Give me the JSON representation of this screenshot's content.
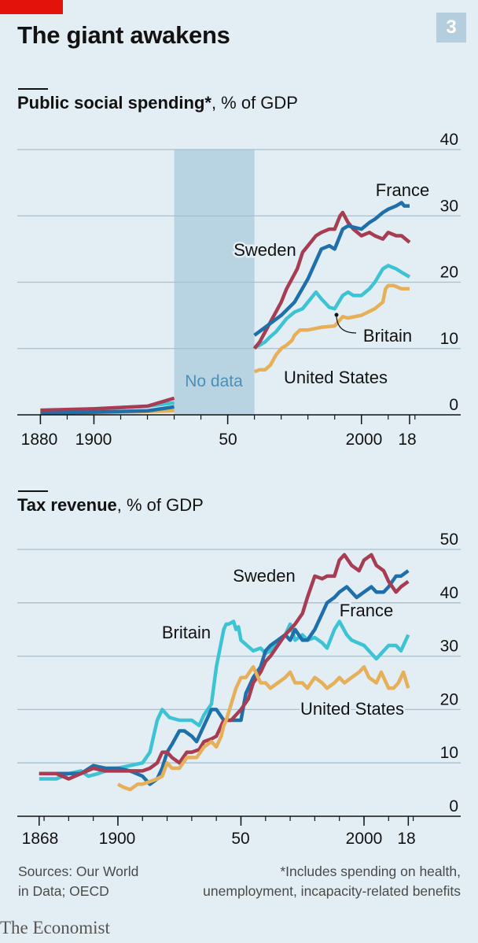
{
  "header": {
    "title": "The giant awakens",
    "badge": "3",
    "accent_color": "#e3120b"
  },
  "chart_data": [
    {
      "type": "line",
      "title": "Public social spending*",
      "unit_label": ", % of GDP",
      "ylim": [
        0,
        40
      ],
      "y_ticks": [
        "0",
        "10",
        "20",
        "30",
        "40"
      ],
      "x_ticks": [
        "1880",
        "1900",
        "50",
        "2000",
        "18"
      ],
      "xlim": [
        1874,
        2023
      ],
      "gap": {
        "from": 1930,
        "to": 1960,
        "label": "No data"
      },
      "series": [
        {
          "name": "United States",
          "color": "#e6b05a",
          "x": [
            1880,
            1900,
            1920,
            1930,
            1960,
            1962,
            1964,
            1966,
            1968,
            1970,
            1972,
            1974,
            1975,
            1977,
            1980,
            1985,
            1990,
            1993,
            1995,
            2000,
            2005,
            2008,
            2009,
            2010,
            2012,
            2015,
            2018
          ],
          "y": [
            0.2,
            0.3,
            0.5,
            0.6,
            6.5,
            6.8,
            6.8,
            7.5,
            9.0,
            10.0,
            10.5,
            11.2,
            12.0,
            12.8,
            12.8,
            13.2,
            13.4,
            14.8,
            14.6,
            15.0,
            16.0,
            17.0,
            19.0,
            19.5,
            19.5,
            19.0,
            19.0
          ]
        },
        {
          "name": "Britain",
          "color": "#3dc3d4",
          "x": [
            1880,
            1900,
            1920,
            1930,
            1960,
            1962,
            1964,
            1966,
            1968,
            1970,
            1972,
            1975,
            1978,
            1980,
            1983,
            1985,
            1988,
            1990,
            1993,
            1995,
            1997,
            2000,
            2003,
            2005,
            2008,
            2010,
            2013,
            2015,
            2018
          ],
          "y": [
            0.5,
            0.9,
            1.3,
            1.8,
            10.2,
            10.5,
            11.0,
            11.8,
            12.5,
            13.5,
            14.5,
            15.5,
            16.0,
            17.0,
            18.5,
            17.5,
            16.2,
            16.0,
            18.0,
            18.5,
            18.0,
            18.0,
            19.0,
            20.0,
            22.0,
            22.5,
            22.0,
            21.5,
            20.8
          ]
        },
        {
          "name": "Sweden",
          "color": "#a73d52",
          "x": [
            1880,
            1900,
            1920,
            1930,
            1960,
            1962,
            1964,
            1966,
            1968,
            1970,
            1972,
            1974,
            1976,
            1978,
            1980,
            1983,
            1985,
            1988,
            1990,
            1992,
            1993,
            1995,
            1997,
            2000,
            2003,
            2005,
            2008,
            2010,
            2013,
            2015,
            2018
          ],
          "y": [
            0.7,
            0.9,
            1.3,
            2.5,
            10.0,
            11.0,
            12.5,
            14.0,
            15.5,
            17.0,
            19.0,
            20.5,
            22.0,
            24.5,
            25.5,
            27.0,
            27.5,
            28.0,
            28.0,
            30.0,
            30.5,
            29.0,
            28.0,
            27.0,
            27.5,
            27.0,
            26.5,
            27.5,
            27.0,
            27.0,
            26.0
          ]
        },
        {
          "name": "France",
          "color": "#1f6faa",
          "x": [
            1880,
            1900,
            1920,
            1930,
            1960,
            1965,
            1970,
            1975,
            1980,
            1985,
            1988,
            1990,
            1993,
            1995,
            2000,
            2003,
            2005,
            2008,
            2010,
            2013,
            2015,
            2016,
            2018
          ],
          "y": [
            0.2,
            0.4,
            0.6,
            1.2,
            12.0,
            13.5,
            15.0,
            17.0,
            20.5,
            25.0,
            25.5,
            25.0,
            28.0,
            28.5,
            28.0,
            29.0,
            29.5,
            30.5,
            31.0,
            31.5,
            32.0,
            31.5,
            31.5
          ]
        }
      ],
      "annotations": [
        "France",
        "Sweden",
        "Britain",
        "United States"
      ]
    },
    {
      "type": "line",
      "title": "Tax revenue",
      "unit_label": ", % of GDP",
      "ylim": [
        0,
        50
      ],
      "y_ticks": [
        "0",
        "10",
        "20",
        "30",
        "40",
        "50"
      ],
      "x_ticks": [
        "1868",
        "1900",
        "50",
        "2000",
        "18"
      ],
      "xlim": [
        1862,
        2023
      ],
      "series": [
        {
          "name": "Britain",
          "color": "#3dc3d4",
          "x": [
            1868,
            1875,
            1880,
            1885,
            1888,
            1892,
            1895,
            1900,
            1905,
            1910,
            1913,
            1916,
            1918,
            1921,
            1925,
            1930,
            1933,
            1935,
            1938,
            1940,
            1943,
            1944,
            1945,
            1947,
            1948,
            1949,
            1950,
            1955,
            1958,
            1960,
            1962,
            1965,
            1968,
            1970,
            1972,
            1975,
            1977,
            1980,
            1983,
            1985,
            1988,
            1990,
            1993,
            1995,
            2000,
            2005,
            2008,
            2010,
            2013,
            2015,
            2018
          ],
          "y": [
            7,
            7,
            8,
            8.5,
            7.5,
            8,
            8.5,
            9,
            9.5,
            10,
            12,
            18,
            20,
            18.5,
            18,
            18,
            17,
            19,
            21,
            28,
            35,
            36,
            36,
            36.5,
            35,
            35.5,
            33,
            31,
            31.5,
            30.5,
            31,
            33,
            34,
            36,
            33,
            34,
            33,
            33.5,
            32.5,
            31.5,
            35,
            36.5,
            34,
            33,
            32,
            29.5,
            31,
            32,
            32,
            31,
            34
          ]
        },
        {
          "name": "France",
          "color": "#1f6faa",
          "x": [
            1868,
            1875,
            1880,
            1885,
            1890,
            1895,
            1900,
            1905,
            1910,
            1913,
            1916,
            1918,
            1920,
            1922,
            1925,
            1927,
            1930,
            1932,
            1935,
            1938,
            1940,
            1943,
            1946,
            1950,
            1952,
            1955,
            1958,
            1960,
            1962,
            1965,
            1968,
            1970,
            1972,
            1975,
            1977,
            1980,
            1983,
            1985,
            1988,
            1990,
            1993,
            1995,
            1997,
            2000,
            2003,
            2005,
            2008,
            2010,
            2013,
            2015,
            2018
          ],
          "y": [
            8,
            8,
            8,
            8,
            9.5,
            9,
            9,
            8.5,
            7.5,
            6,
            7,
            9,
            12,
            13.5,
            16,
            16,
            15,
            14,
            17,
            20,
            20,
            18,
            18,
            18,
            23,
            26,
            28,
            31,
            32,
            33,
            34,
            33,
            35,
            33,
            33,
            35,
            38,
            40,
            41,
            42,
            43,
            42,
            41,
            42,
            43,
            42,
            42,
            43,
            45,
            45,
            46
          ]
        },
        {
          "name": "Sweden",
          "color": "#a73d52",
          "x": [
            1868,
            1875,
            1880,
            1885,
            1890,
            1895,
            1900,
            1905,
            1910,
            1913,
            1916,
            1918,
            1920,
            1922,
            1925,
            1928,
            1930,
            1933,
            1935,
            1938,
            1940,
            1943,
            1946,
            1950,
            1953,
            1955,
            1958,
            1960,
            1962,
            1965,
            1968,
            1970,
            1972,
            1975,
            1977,
            1980,
            1983,
            1985,
            1988,
            1990,
            1992,
            1995,
            1998,
            2000,
            2003,
            2005,
            2008,
            2010,
            2013,
            2015,
            2018
          ],
          "y": [
            8,
            8,
            7,
            8,
            9,
            8.5,
            8.5,
            8.5,
            8.5,
            9,
            10,
            12,
            12,
            11,
            10,
            12,
            12,
            12.5,
            14,
            14.5,
            15,
            18,
            18,
            20,
            22,
            25,
            27,
            29,
            30,
            32,
            34,
            35,
            36,
            38,
            41,
            45,
            44.5,
            45,
            45,
            48,
            49,
            47,
            46,
            48,
            49,
            47,
            46,
            44,
            42,
            43,
            44
          ]
        },
        {
          "name": "United States",
          "color": "#e6b05a",
          "x": [
            1900,
            1902,
            1905,
            1908,
            1910,
            1913,
            1916,
            1918,
            1920,
            1922,
            1925,
            1928,
            1930,
            1932,
            1935,
            1938,
            1940,
            1942,
            1943,
            1944,
            1946,
            1948,
            1950,
            1952,
            1955,
            1958,
            1960,
            1962,
            1965,
            1968,
            1970,
            1972,
            1975,
            1977,
            1980,
            1983,
            1985,
            1988,
            1990,
            1992,
            1995,
            1998,
            2000,
            2002,
            2005,
            2007,
            2008,
            2010,
            2012,
            2014,
            2016,
            2018
          ],
          "y": [
            6,
            5.5,
            5,
            6,
            6,
            6.5,
            7,
            7.5,
            10,
            9,
            9,
            11,
            11,
            11,
            13,
            14,
            13,
            15,
            17,
            18,
            21,
            24,
            26,
            26,
            28,
            25,
            25,
            24,
            25,
            26,
            27,
            25,
            25,
            24,
            26,
            25,
            24,
            25,
            26,
            25,
            26,
            27,
            28,
            26,
            25,
            27,
            26,
            24,
            24,
            25,
            27,
            24
          ]
        }
      ],
      "annotations": [
        "Sweden",
        "France",
        "Britain",
        "United States"
      ]
    }
  ],
  "footer": {
    "sources_line1": "Sources: Our World",
    "sources_line2": "in Data; OECD",
    "note_line1": "*Includes spending on health,",
    "note_line2": "unemployment, incapacity-related benefits",
    "brand": "The Economist"
  }
}
